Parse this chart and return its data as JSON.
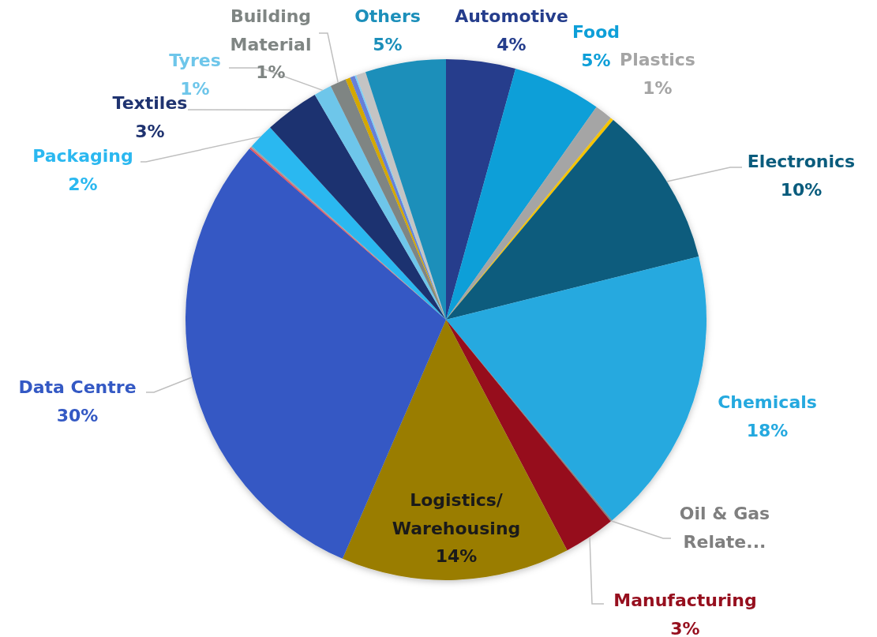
{
  "chart_data": {
    "type": "pie",
    "categories": [
      "Automotive",
      "Food",
      "Plastics",
      null,
      "Electronics",
      "Chemicals",
      "Oil & Gas Relate...",
      "Manufacturing",
      "Logistics/ Warehousing",
      "Data Centre",
      null,
      null,
      "Packaging",
      "Textiles",
      "Tyres",
      "Building Material",
      null,
      null,
      null,
      null,
      "Others"
    ],
    "values": [
      4.3,
      5.5,
      1.1,
      0.2,
      10.0,
      17.9,
      0.1,
      3.2,
      14.2,
      29.9,
      0.1,
      0.1,
      1.6,
      3.4,
      1.1,
      1.0,
      0.3,
      0.3,
      0.1,
      0.6,
      5.0
    ],
    "value_labels": [
      "4%",
      "5%",
      "1%",
      null,
      "10%",
      "18%",
      null,
      "3%",
      "14%",
      "30%",
      null,
      null,
      "2%",
      "3%",
      "1%",
      "1%",
      null,
      null,
      null,
      null,
      "5%"
    ],
    "colors": [
      "#253d8c",
      "#0e9fd8",
      "#a5a5a5",
      "#f5c400",
      "#0a5c7d",
      "#25a9df",
      "#7f7f7f",
      "#960f1e",
      "#9a7d00",
      "#3459c4",
      "#e8505b",
      "#a0a0a0",
      "#2bb8f0",
      "#1f3370",
      "#6ec6ea",
      "#7f8583",
      "#d4a800",
      "#6680d8",
      "#7fd0f5",
      "#c4c4c4",
      "#1c8fba"
    ]
  }
}
